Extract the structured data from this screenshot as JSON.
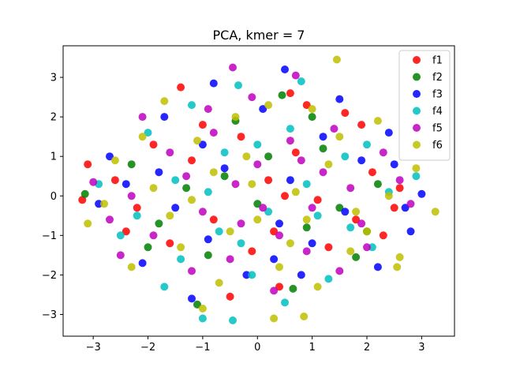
{
  "chart_data": {
    "type": "scatter",
    "title": "PCA, kmer = 7",
    "xlabel": "",
    "ylabel": "",
    "xlim": [
      -3.55,
      3.6
    ],
    "ylim": [
      -3.55,
      3.8
    ],
    "xticks": [
      -3,
      -2,
      -1,
      0,
      1,
      2,
      3
    ],
    "yticks": [
      -3,
      -2,
      -1,
      0,
      1,
      2,
      3
    ],
    "grid": false,
    "legend_position": "top-right",
    "series": [
      {
        "name": "f1",
        "color": "#ff0000",
        "points": [
          [
            -3.1,
            0.8
          ],
          [
            -3.2,
            -0.1
          ],
          [
            -1.4,
            2.75
          ],
          [
            1.9,
            1.8
          ],
          [
            -0.5,
            -2.55
          ],
          [
            0.6,
            2.6
          ],
          [
            2.5,
            -0.3
          ],
          [
            -1.2,
            0.9
          ],
          [
            1.3,
            -1.3
          ],
          [
            0.2,
            0.4
          ],
          [
            -0.8,
            -0.6
          ],
          [
            2.1,
            0.6
          ],
          [
            -2.2,
            -0.3
          ],
          [
            0.9,
            2.3
          ],
          [
            1.6,
            2.1
          ],
          [
            -1.9,
            1.3
          ],
          [
            0.4,
            -2.3
          ],
          [
            2.6,
            0.2
          ],
          [
            -0.3,
            1.5
          ],
          [
            1.1,
            -0.1
          ],
          [
            -1.6,
            -1.2
          ],
          [
            0.7,
            1.1
          ],
          [
            -2.6,
            0.4
          ],
          [
            1.8,
            -0.6
          ],
          [
            -0.1,
            -1.4
          ],
          [
            0.5,
            0.0
          ],
          [
            -1.0,
            1.8
          ],
          [
            2.3,
            -1.0
          ],
          [
            -2.4,
            -0.9
          ],
          [
            0.3,
            -0.9
          ]
        ]
      },
      {
        "name": "f2",
        "color": "#008000",
        "points": [
          [
            -3.15,
            0.05
          ],
          [
            0.45,
            2.55
          ],
          [
            -1.1,
            -2.75
          ],
          [
            0.65,
            -2.35
          ],
          [
            1.8,
            -1.55
          ],
          [
            -0.6,
            0.5
          ],
          [
            1.2,
            1.2
          ],
          [
            -1.8,
            -0.7
          ],
          [
            0.0,
            -0.2
          ],
          [
            2.2,
            0.3
          ],
          [
            -2.3,
            0.8
          ],
          [
            0.9,
            -0.8
          ],
          [
            -0.4,
            1.9
          ],
          [
            1.5,
            -0.3
          ],
          [
            -1.3,
            0.2
          ],
          [
            0.2,
            1.0
          ],
          [
            2.0,
            -0.9
          ],
          [
            -0.9,
            -1.5
          ],
          [
            1.0,
            2.0
          ],
          [
            -2.0,
            -1.3
          ]
        ]
      },
      {
        "name": "f3",
        "color": "#0000ff",
        "points": [
          [
            0.5,
            3.2
          ],
          [
            -0.8,
            2.85
          ],
          [
            3.0,
            0.05
          ],
          [
            2.7,
            -0.3
          ],
          [
            1.5,
            2.45
          ],
          [
            -1.7,
            2.0
          ],
          [
            -0.9,
            -1.1
          ],
          [
            1.2,
            1.5
          ],
          [
            -2.1,
            -1.7
          ],
          [
            0.4,
            -0.7
          ],
          [
            2.4,
            1.6
          ],
          [
            -2.7,
            1.0
          ],
          [
            0.8,
            -2.0
          ],
          [
            -1.2,
            -2.6
          ],
          [
            2.8,
            -0.9
          ],
          [
            -0.6,
            0.7
          ],
          [
            1.9,
            0.9
          ],
          [
            -1.5,
            -0.3
          ],
          [
            0.1,
            2.2
          ],
          [
            -2.4,
            0.3
          ],
          [
            1.0,
            -1.2
          ],
          [
            -0.2,
            -2.0
          ],
          [
            2.2,
            -1.8
          ],
          [
            -1.0,
            1.3
          ],
          [
            0.6,
            0.4
          ],
          [
            1.6,
            -0.4
          ],
          [
            -2.9,
            -0.2
          ],
          [
            0.3,
            -1.6
          ],
          [
            -1.8,
            0.6
          ],
          [
            2.5,
            0.8
          ]
        ]
      },
      {
        "name": "f4",
        "color": "#00bfbf",
        "points": [
          [
            -1.0,
            -3.1
          ],
          [
            -0.45,
            -3.15
          ],
          [
            -0.1,
            -2.0
          ],
          [
            0.8,
            2.9
          ],
          [
            -0.35,
            2.8
          ],
          [
            2.9,
            0.5
          ],
          [
            -2.9,
            0.3
          ],
          [
            1.6,
            1.0
          ],
          [
            -1.7,
            -2.3
          ],
          [
            0.5,
            -2.7
          ],
          [
            -1.2,
            2.3
          ],
          [
            2.1,
            -1.3
          ],
          [
            -2.5,
            -1.0
          ],
          [
            0.0,
            1.3
          ],
          [
            1.3,
            -2.1
          ],
          [
            -0.7,
            -0.9
          ],
          [
            2.4,
            0.1
          ],
          [
            -2.0,
            1.6
          ],
          [
            0.9,
            0.3
          ],
          [
            -1.5,
            0.4
          ],
          [
            1.7,
            -0.8
          ],
          [
            -0.3,
            -1.2
          ],
          [
            0.6,
            1.7
          ],
          [
            -2.2,
            -0.5
          ],
          [
            1.1,
            -0.5
          ],
          [
            -0.9,
            0.1
          ],
          [
            2.0,
            1.3
          ],
          [
            -1.4,
            -1.6
          ],
          [
            0.2,
            -0.4
          ],
          [
            -0.6,
            1.1
          ]
        ]
      },
      {
        "name": "f5",
        "color": "#bf00bf",
        "points": [
          [
            -0.45,
            3.25
          ],
          [
            -3.0,
            0.35
          ],
          [
            -2.5,
            -1.5
          ],
          [
            0.7,
            3.05
          ],
          [
            2.0,
            -1.3
          ],
          [
            -0.3,
            -0.7
          ],
          [
            1.4,
            1.7
          ],
          [
            -1.6,
            1.1
          ],
          [
            0.9,
            -1.4
          ],
          [
            -2.3,
            0.0
          ],
          [
            2.6,
            0.4
          ],
          [
            -0.9,
            2.2
          ],
          [
            0.3,
            -2.4
          ],
          [
            1.7,
            0.2
          ],
          [
            -1.2,
            -1.9
          ],
          [
            0.0,
            0.8
          ],
          [
            2.3,
            1.1
          ],
          [
            -2.7,
            -0.6
          ],
          [
            1.0,
            -0.3
          ],
          [
            -0.5,
            -1.6
          ],
          [
            0.6,
            1.4
          ],
          [
            -1.9,
            -1.0
          ],
          [
            1.9,
            -0.7
          ],
          [
            -0.1,
            2.5
          ],
          [
            -1.3,
            0.5
          ],
          [
            0.4,
            -1.0
          ],
          [
            2.8,
            -0.2
          ],
          [
            -0.8,
            1.6
          ],
          [
            1.2,
            0.6
          ],
          [
            -2.1,
            2.0
          ],
          [
            0.1,
            -0.3
          ],
          [
            -1.0,
            -0.4
          ],
          [
            1.5,
            -1.9
          ],
          [
            -0.4,
            0.3
          ],
          [
            0.8,
            0.9
          ]
        ]
      },
      {
        "name": "f6",
        "color": "#bfbf00",
        "points": [
          [
            1.45,
            3.45
          ],
          [
            -3.1,
            -0.7
          ],
          [
            3.25,
            -0.4
          ],
          [
            0.85,
            -3.05
          ],
          [
            0.3,
            -3.1
          ],
          [
            -1.0,
            -2.85
          ],
          [
            2.6,
            -1.55
          ],
          [
            2.55,
            -1.8
          ],
          [
            -2.1,
            1.5
          ],
          [
            0.2,
            2.3
          ],
          [
            -1.6,
            -0.5
          ],
          [
            1.3,
            0.8
          ],
          [
            -0.7,
            -2.2
          ],
          [
            2.2,
            1.9
          ],
          [
            -2.6,
            0.9
          ],
          [
            0.6,
            -1.2
          ],
          [
            1.8,
            -0.4
          ],
          [
            -1.1,
            1.4
          ],
          [
            0.0,
            -0.6
          ],
          [
            -2.3,
            -1.8
          ],
          [
            2.9,
            0.7
          ],
          [
            -0.4,
            2.0
          ],
          [
            1.1,
            -2.3
          ],
          [
            -1.9,
            0.2
          ],
          [
            0.7,
            0.1
          ],
          [
            -0.2,
            1.0
          ],
          [
            2.0,
            -0.9
          ],
          [
            -1.4,
            -1.3
          ],
          [
            1.5,
            1.5
          ],
          [
            -0.8,
            0.6
          ],
          [
            0.4,
            -1.8
          ],
          [
            -2.8,
            -0.2
          ],
          [
            2.4,
            0.0
          ],
          [
            -0.5,
            -0.9
          ],
          [
            1.0,
            2.2
          ],
          [
            -1.7,
            2.4
          ],
          [
            0.9,
            -0.6
          ],
          [
            -0.1,
            0.3
          ],
          [
            1.7,
            -1.4
          ],
          [
            -1.2,
            -0.1
          ]
        ]
      }
    ]
  }
}
